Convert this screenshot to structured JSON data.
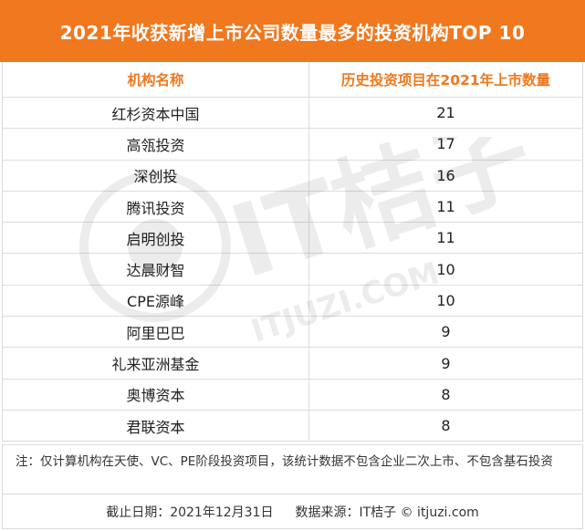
{
  "title": "2021年收获新增上市公司数量最多的投资机构TOP 10",
  "table": {
    "headers": [
      "机构名称",
      "历史投资项目在2021年上市数量"
    ],
    "rows": [
      {
        "name": "红杉资本中国",
        "count": "21"
      },
      {
        "name": "高瓴投资",
        "count": "17"
      },
      {
        "name": "深创投",
        "count": "16"
      },
      {
        "name": "腾讯投资",
        "count": "11"
      },
      {
        "name": "启明创投",
        "count": "11"
      },
      {
        "name": "达晨财智",
        "count": "10"
      },
      {
        "name": "CPE源峰",
        "count": "10"
      },
      {
        "name": "阿里巴巴",
        "count": "9"
      },
      {
        "name": "礼来亚洲基金",
        "count": "9"
      },
      {
        "name": "奥博资本",
        "count": "8"
      },
      {
        "name": "君联资本",
        "count": "8"
      }
    ]
  },
  "note": "注：仅计算机构在天使、VC、PE阶段投资项目，该统计数据不包含企业二次上市、不包含基石投资",
  "footer": {
    "date": "截止日期：2021年12月31日",
    "source": "数据来源：IT桔子 © itjuzi.com"
  },
  "watermark": {
    "brand": "IT桔子",
    "url": "ITJUZI.COM"
  },
  "colors": {
    "accent": "#f0781e",
    "border": "#dddddd"
  }
}
